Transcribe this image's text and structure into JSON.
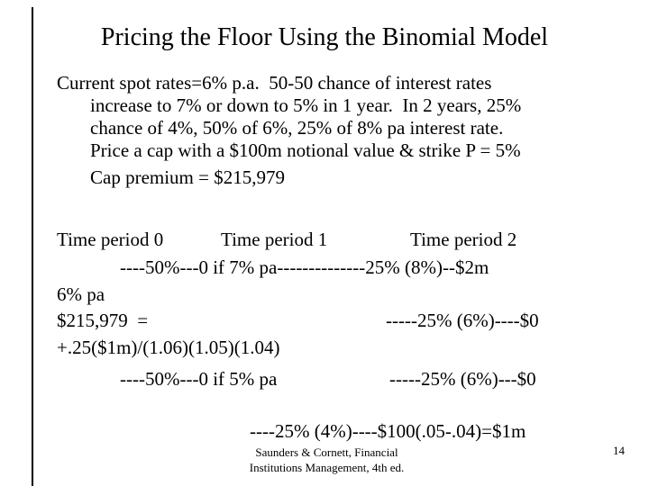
{
  "slide": {
    "title": "Pricing the Floor Using the Binomial Model",
    "body": {
      "line1": "Current spot rates=6% p.a.  50-50 chance of interest rates",
      "line2": "increase to 7% or down to 5% in 1 year.  In 2 years, 25%",
      "line3": "chance of 4%, 50% of 6%, 25% of 8% pa interest rate.",
      "line4": "Price a cap with a $100m notional value & strike P = 5%",
      "line5": "Cap premium = $215,979"
    },
    "tree": {
      "period0": "Time period 0",
      "period1": "Time period 1",
      "period2": "Time period 2",
      "branch_up_7pct": "----50%---0 if 7% pa--------------25% (8%)--$2m",
      "node_6pct_pa": "6% pa",
      "premium_equals": "$215,979  =",
      "branch_25pct_6pct_upper": "-----25% (6%)----$0",
      "formula": "+.25($1m)/(1.06)(1.05)(1.04)",
      "branch_down_5pct": "----50%---0 if 5% pa",
      "branch_25pct_6pct_lower": "-----25% (6%)---$0",
      "branch_25pct_4pct": "----25% (4%)----$100(.05-.04)=$1m"
    },
    "footer": {
      "citation_line1": "Saunders & Cornett, Financial",
      "citation_line2": "Institutions Management, 4th ed.",
      "page_number": "14"
    }
  },
  "colors": {
    "background": "#ffffff",
    "text": "#000000",
    "margin_line": "#000000"
  }
}
